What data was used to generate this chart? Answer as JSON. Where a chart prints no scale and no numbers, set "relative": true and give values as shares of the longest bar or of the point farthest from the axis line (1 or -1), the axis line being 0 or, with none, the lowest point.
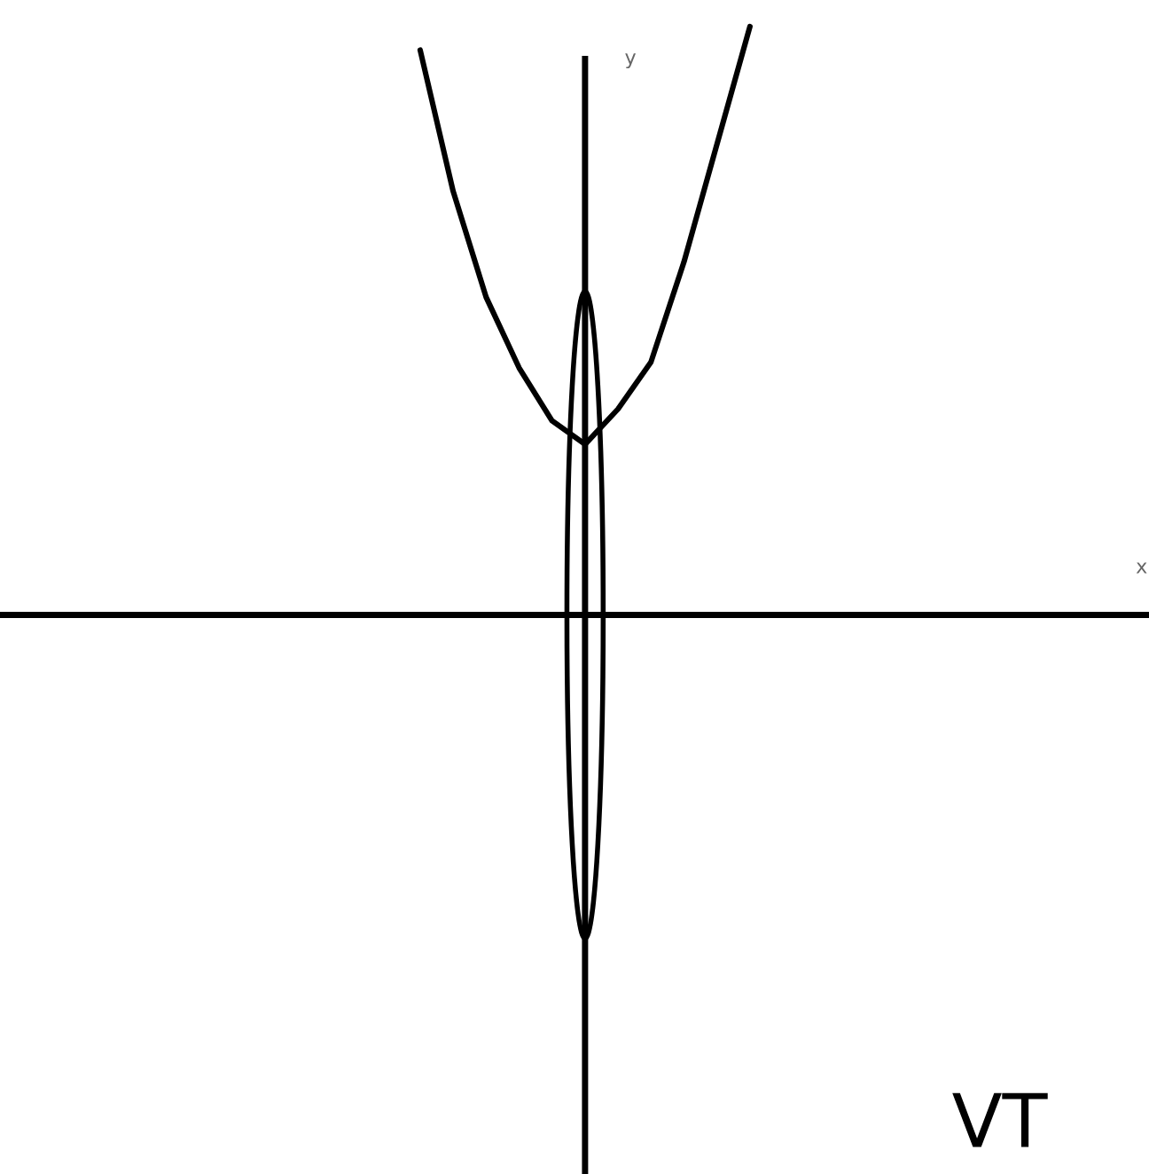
{
  "chart_data": {
    "type": "line",
    "relative": true,
    "xlabel": "x",
    "ylabel": "y",
    "annotations": [
      "VT"
    ],
    "categories": [
      null,
      null,
      null,
      null,
      null,
      null,
      null,
      null,
      null,
      null,
      null,
      null,
      null,
      null,
      null,
      null,
      null,
      null,
      null,
      null,
      null,
      null,
      null,
      null,
      null,
      null,
      null,
      null,
      null,
      null,
      null,
      null,
      null,
      null,
      null
    ],
    "series": [
      {
        "color": "#000000",
        "values": [
          null,
          null,
          null,
          null,
          null,
          null,
          null,
          null,
          null,
          null,
          null,
          null,
          0.96,
          0.72,
          0.54,
          0.42,
          0.33,
          0.29,
          0.35,
          0.43,
          0.6,
          0.8,
          1.0,
          null,
          null,
          null,
          null,
          null,
          null,
          null,
          null,
          null,
          null,
          null,
          null
        ]
      }
    ],
    "marker": "none",
    "line_style": "solid",
    "grid": false,
    "legend": false
  }
}
